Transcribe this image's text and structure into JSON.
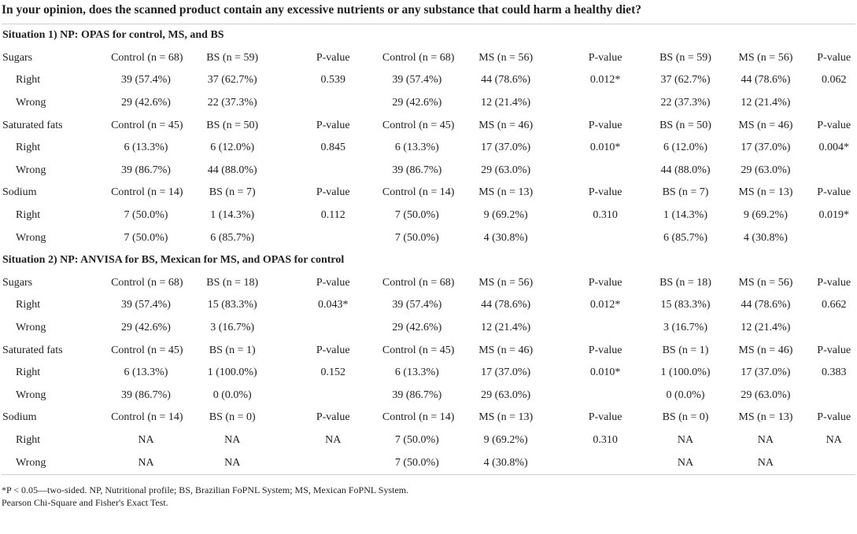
{
  "title": "In your opinion, does the scanned product contain any excessive nutrients or any substance that could harm a healthy diet?",
  "sections": [
    {
      "heading": "Situation 1) NP: OPAS for control, MS, and BS",
      "groups": [
        {
          "label": "Sugars",
          "header": [
            "Control (n = 68)",
            "BS (n = 59)",
            "P-value",
            "Control (n = 68)",
            "MS (n = 56)",
            "P-value",
            "BS (n = 59)",
            "MS (n = 56)",
            "P-value"
          ],
          "rows": [
            {
              "label": "Right",
              "cells": [
                "39 (57.4%)",
                "37 (62.7%)",
                "0.539",
                "39 (57.4%)",
                "44 (78.6%)",
                "0.012*",
                "37 (62.7%)",
                "44 (78.6%)",
                "0.062"
              ]
            },
            {
              "label": "Wrong",
              "cells": [
                "29 (42.6%)",
                "22 (37.3%)",
                "",
                "29 (42.6%)",
                "12 (21.4%)",
                "",
                "22 (37.3%)",
                "12 (21.4%)",
                ""
              ]
            }
          ]
        },
        {
          "label": "Saturated fats",
          "header": [
            "Control (n = 45)",
            "BS (n = 50)",
            "P-value",
            "Control (n = 45)",
            "MS (n = 46)",
            "P-value",
            "BS (n = 50)",
            "MS (n = 46)",
            "P-value"
          ],
          "rows": [
            {
              "label": "Right",
              "cells": [
                "6 (13.3%)",
                "6 (12.0%)",
                "0.845",
                "6 (13.3%)",
                "17 (37.0%)",
                "0.010*",
                "6 (12.0%)",
                "17 (37.0%)",
                "0.004*"
              ]
            },
            {
              "label": "Wrong",
              "cells": [
                "39 (86.7%)",
                "44 (88.0%)",
                "",
                "39 (86.7%)",
                "29 (63.0%)",
                "",
                "44 (88.0%)",
                "29 (63.0%)",
                ""
              ]
            }
          ]
        },
        {
          "label": "Sodium",
          "header": [
            "Control (n = 14)",
            "BS (n = 7)",
            "P-value",
            "Control (n = 14)",
            "MS (n = 13)",
            "P-value",
            "BS (n = 7)",
            "MS (n = 13)",
            "P-value"
          ],
          "rows": [
            {
              "label": "Right",
              "cells": [
                "7 (50.0%)",
                "1 (14.3%)",
                "0.112",
                "7 (50.0%)",
                "9 (69.2%)",
                "0.310",
                "1 (14.3%)",
                "9 (69.2%)",
                "0.019*"
              ]
            },
            {
              "label": "Wrong",
              "cells": [
                "7 (50.0%)",
                "6 (85.7%)",
                "",
                "7 (50.0%)",
                "4 (30.8%)",
                "",
                "6 (85.7%)",
                "4 (30.8%)",
                ""
              ]
            }
          ]
        }
      ]
    },
    {
      "heading": "Situation 2) NP: ANVISA for BS, Mexican for MS, and OPAS for control",
      "groups": [
        {
          "label": "Sugars",
          "header": [
            "Control (n = 68)",
            "BS (n = 18)",
            "P-value",
            "Control (n = 68)",
            "MS (n = 56)",
            "P-value",
            "BS (n = 18)",
            "MS (n = 56)",
            "P-value"
          ],
          "rows": [
            {
              "label": "Right",
              "cells": [
                "39 (57.4%)",
                "15 (83.3%)",
                "0.043*",
                "39 (57.4%)",
                "44 (78.6%)",
                "0.012*",
                "15 (83.3%)",
                "44 (78.6%)",
                "0.662"
              ]
            },
            {
              "label": "Wrong",
              "cells": [
                "29 (42.6%)",
                "3 (16.7%)",
                "",
                "29 (42.6%)",
                "12 (21.4%)",
                "",
                "3 (16.7%)",
                "12 (21.4%)",
                ""
              ]
            }
          ]
        },
        {
          "label": "Saturated fats",
          "header": [
            "Control (n = 45)",
            "BS (n = 1)",
            "P-value",
            "Control (n = 45)",
            "MS (n = 46)",
            "P-value",
            "BS (n = 1)",
            "MS (n = 46)",
            "P-value"
          ],
          "rows": [
            {
              "label": "Right",
              "cells": [
                "6 (13.3%)",
                "1 (100.0%)",
                "0.152",
                "6 (13.3%)",
                "17 (37.0%)",
                "0.010*",
                "1 (100.0%)",
                "17 (37.0%)",
                "0.383"
              ]
            },
            {
              "label": "Wrong",
              "cells": [
                "39 (86.7%)",
                "0 (0.0%)",
                "",
                "39 (86.7%)",
                "29 (63.0%)",
                "",
                "0 (0.0%)",
                "29 (63.0%)",
                ""
              ]
            }
          ]
        },
        {
          "label": "Sodium",
          "header": [
            "Control (n = 14)",
            "BS (n = 0)",
            "P-value",
            "Control (n = 14)",
            "MS (n = 13)",
            "P-value",
            "BS (n = 0)",
            "MS (n = 13)",
            "P-value"
          ],
          "rows": [
            {
              "label": "Right",
              "cells": [
                "NA",
                "NA",
                "NA",
                "7 (50.0%)",
                "9 (69.2%)",
                "0.310",
                "NA",
                "NA",
                "NA"
              ]
            },
            {
              "label": "Wrong",
              "cells": [
                "NA",
                "NA",
                "",
                "7 (50.0%)",
                "4 (30.8%)",
                "",
                "NA",
                "NA",
                ""
              ]
            }
          ]
        }
      ]
    }
  ],
  "footnotes": [
    "*P < 0.05—two-sided. NP, Nutritional profile; BS, Brazilian FoPNL System; MS, Mexican FoPNL System.",
    "Pearson Chi-Square and Fisher's Exact Test."
  ]
}
